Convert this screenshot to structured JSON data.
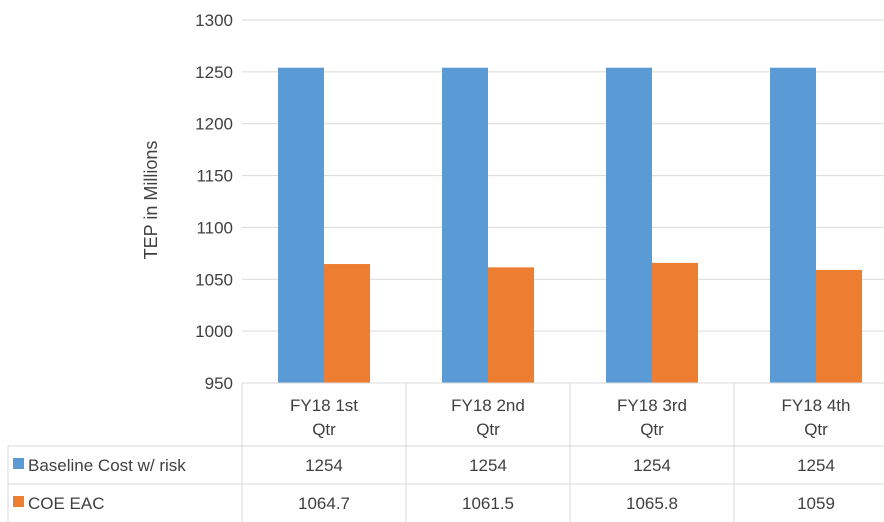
{
  "chart_data": {
    "type": "bar",
    "ylabel": "TEP in Millions",
    "ylim": [
      950,
      1300
    ],
    "yticks": [
      950,
      1000,
      1050,
      1100,
      1150,
      1200,
      1250,
      1300
    ],
    "categories": [
      [
        "FY18 1st",
        "Qtr"
      ],
      [
        "FY18 2nd",
        "Qtr"
      ],
      [
        "FY18 3rd",
        "Qtr"
      ],
      [
        "FY18 4th",
        "Qtr"
      ]
    ],
    "series": [
      {
        "name": "Baseline Cost w/ risk",
        "color": "#5B9BD5",
        "values": [
          1254,
          1254,
          1254,
          1254
        ],
        "labels": [
          "1254",
          "1254",
          "1254",
          "1254"
        ]
      },
      {
        "name": "COE EAC",
        "color": "#ED7D31",
        "values": [
          1064.7,
          1061.5,
          1065.8,
          1059
        ],
        "labels": [
          "1064.7",
          "1061.5",
          "1065.8",
          "1059"
        ]
      }
    ],
    "grid": true,
    "legend": "data-table"
  }
}
